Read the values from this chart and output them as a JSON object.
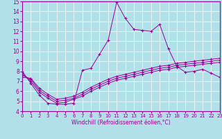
{
  "xlabel": "Windchill (Refroidissement éolien,°C)",
  "background_color": "#b2e0e8",
  "line_color": "#990099",
  "grid_color": "#ffffff",
  "xlim": [
    0,
    23
  ],
  "ylim": [
    4,
    15
  ],
  "yticks": [
    4,
    5,
    6,
    7,
    8,
    9,
    10,
    11,
    12,
    13,
    14,
    15
  ],
  "xticks": [
    0,
    1,
    2,
    3,
    4,
    5,
    6,
    7,
    8,
    9,
    10,
    11,
    12,
    13,
    14,
    15,
    16,
    17,
    18,
    19,
    20,
    21,
    22,
    23
  ],
  "line1_x": [
    0,
    1,
    2,
    3,
    4,
    5,
    6,
    7,
    8,
    9,
    10,
    11,
    12,
    13,
    14,
    15,
    16,
    17,
    18,
    19,
    20,
    21,
    22,
    23
  ],
  "line1_y": [
    8.0,
    6.8,
    5.6,
    4.8,
    4.7,
    4.7,
    4.8,
    8.1,
    8.3,
    9.7,
    11.1,
    14.9,
    13.3,
    12.2,
    12.1,
    12.0,
    12.7,
    10.3,
    8.5,
    7.9,
    8.0,
    8.2,
    7.8,
    7.4
  ],
  "line2_x": [
    0,
    1,
    2,
    3,
    4,
    5,
    6,
    7,
    8,
    9,
    10,
    11,
    12,
    13,
    14,
    15,
    16,
    17,
    18,
    19,
    20,
    21,
    22,
    23
  ],
  "line2_y": [
    7.8,
    7.0,
    5.9,
    5.3,
    4.8,
    4.9,
    5.2,
    5.5,
    6.0,
    6.4,
    6.8,
    7.1,
    7.3,
    7.5,
    7.7,
    7.9,
    8.1,
    8.2,
    8.4,
    8.5,
    8.6,
    8.7,
    8.8,
    8.9
  ],
  "line3_x": [
    0,
    1,
    2,
    3,
    4,
    5,
    6,
    7,
    8,
    9,
    10,
    11,
    12,
    13,
    14,
    15,
    16,
    17,
    18,
    19,
    20,
    21,
    22,
    23
  ],
  "line3_y": [
    7.6,
    7.2,
    6.1,
    5.5,
    5.0,
    5.1,
    5.3,
    5.7,
    6.2,
    6.6,
    7.0,
    7.3,
    7.5,
    7.7,
    7.9,
    8.1,
    8.3,
    8.4,
    8.6,
    8.7,
    8.8,
    8.9,
    9.0,
    9.1
  ],
  "line4_x": [
    0,
    1,
    2,
    3,
    4,
    5,
    6,
    7,
    8,
    9,
    10,
    11,
    12,
    13,
    14,
    15,
    16,
    17,
    18,
    19,
    20,
    21,
    22,
    23
  ],
  "line4_y": [
    7.4,
    7.3,
    6.3,
    5.7,
    5.2,
    5.3,
    5.5,
    5.9,
    6.4,
    6.8,
    7.2,
    7.5,
    7.7,
    7.9,
    8.1,
    8.3,
    8.5,
    8.6,
    8.8,
    8.9,
    9.0,
    9.1,
    9.2,
    9.3
  ]
}
